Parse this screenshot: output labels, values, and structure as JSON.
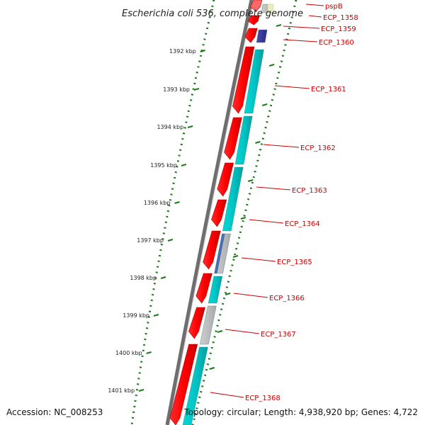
{
  "title": "Escherichia coli 536, complete genome",
  "accession": "Accession: NC_008253",
  "topology": "Topology: circular; Length: 4,938,920 bp; Genes: 4,722",
  "colors": {
    "forward_gene": "#ff0000",
    "reverse_gene": "#00cccc",
    "grey_gene": "#bbbbbb",
    "blue_gene": "#3a3a9a",
    "label": "#cc0000",
    "tick": "#1a7a1a",
    "backbone": "#808080"
  },
  "ticks": [
    {
      "label": "1392 kbp"
    },
    {
      "label": "1393 kbp"
    },
    {
      "label": "1394 kbp"
    },
    {
      "label": "1395 kbp"
    },
    {
      "label": "1396 kbp"
    },
    {
      "label": "1397 kbp"
    },
    {
      "label": "1398 kbp"
    },
    {
      "label": "1399 kbp"
    },
    {
      "label": "1400 kbp"
    },
    {
      "label": "1401 kbp"
    }
  ],
  "genes": [
    {
      "name": "pspB"
    },
    {
      "name": "ECP_1358"
    },
    {
      "name": "ECP_1359"
    },
    {
      "name": "ECP_1360"
    },
    {
      "name": "ECP_1361"
    },
    {
      "name": "ECP_1362"
    },
    {
      "name": "ECP_1363"
    },
    {
      "name": "ECP_1364"
    },
    {
      "name": "ECP_1365"
    },
    {
      "name": "ECP_1366"
    },
    {
      "name": "ECP_1367"
    },
    {
      "name": "ECP_1368"
    }
  ]
}
